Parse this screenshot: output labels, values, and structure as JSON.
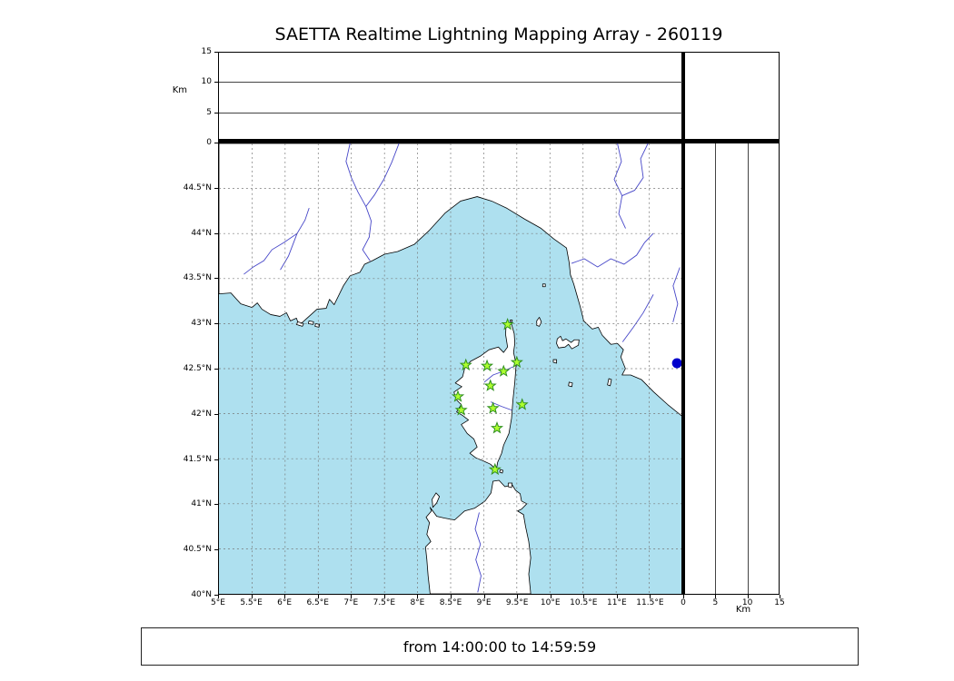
{
  "title": "SAETTA Realtime Lightning Mapping Array - 260119",
  "status_text": "from 14:00:00 to 14:59:59",
  "labels": {
    "km_left": "Km",
    "km_bottom": "Km"
  },
  "colors": {
    "sea": "#aee0ef",
    "land": "#ffffff",
    "coast": "#000000",
    "river": "#4646c8",
    "grid": "#777777",
    "panel_grid": "#444444",
    "star_fill": "#adff2f",
    "star_edge": "#2f8f1f",
    "source_dot": "#0000cc"
  },
  "axes": {
    "lon_range": [
      5,
      12
    ],
    "lat_range": [
      40,
      45
    ],
    "alt_range": [
      0,
      15
    ],
    "lon_tick_values": [
      5,
      5.5,
      6,
      6.5,
      7,
      7.5,
      8,
      8.5,
      9,
      9.5,
      10,
      10.5,
      11,
      11.5
    ],
    "lon_tick_labels": [
      "5°E",
      "5.5°E",
      "6°E",
      "6.5°E",
      "7°E",
      "7.5°E",
      "8°E",
      "8.5°E",
      "9°E",
      "9.5°E",
      "10°E",
      "10.5°E",
      "11°E",
      "11.5°E"
    ],
    "lat_tick_values": [
      44.5,
      44,
      43.5,
      43,
      42.5,
      42,
      41.5,
      41,
      40.5,
      40
    ],
    "lat_tick_labels": [
      "44.5°N",
      "44°N",
      "43.5°N",
      "43°N",
      "42.5°N",
      "42°N",
      "41.5°N",
      "41°N",
      "40.5°N",
      "40°N"
    ],
    "alt_tick_values": [
      0,
      5,
      10,
      15
    ],
    "alt_tick_labels": [
      "0",
      "5",
      "10",
      "15"
    ],
    "alt_grid_values": [
      5,
      10
    ]
  },
  "chart_data": {
    "type": "scatter",
    "title": "SAETTA Realtime Lightning Mapping Array - 260119",
    "time_window": "from 14:00:00 to 14:59:59",
    "map_extent": {
      "lon": [
        5,
        12
      ],
      "lat": [
        40,
        45
      ]
    },
    "altitude_axis_km": {
      "range": [
        0,
        15
      ],
      "ticks": [
        0,
        5,
        10,
        15
      ],
      "label": "Km"
    },
    "stations": [
      [
        9.36,
        42.99
      ],
      [
        8.73,
        42.54
      ],
      [
        9.05,
        42.53
      ],
      [
        9.3,
        42.47
      ],
      [
        9.5,
        42.57
      ],
      [
        9.1,
        42.31
      ],
      [
        8.61,
        42.19
      ],
      [
        9.58,
        42.1
      ],
      [
        8.66,
        42.04
      ],
      [
        9.14,
        42.06
      ],
      [
        9.2,
        41.84
      ],
      [
        9.17,
        41.38
      ]
    ],
    "source_point": {
      "lon": 11.92,
      "lat": 42.56
    },
    "notes": "altitude panels empty for this time window"
  },
  "geo": {
    "land_polygons": [
      {
        "name": "mainland-europe",
        "pts": [
          [
            5.0,
            43.33
          ],
          [
            5.18,
            43.34
          ],
          [
            5.33,
            43.22
          ],
          [
            5.5,
            43.18
          ],
          [
            5.58,
            43.23
          ],
          [
            5.65,
            43.16
          ],
          [
            5.78,
            43.1
          ],
          [
            5.92,
            43.08
          ],
          [
            6.02,
            43.12
          ],
          [
            6.08,
            43.03
          ],
          [
            6.17,
            43.06
          ],
          [
            6.21,
            42.98
          ],
          [
            6.33,
            43.06
          ],
          [
            6.48,
            43.16
          ],
          [
            6.62,
            43.17
          ],
          [
            6.67,
            43.27
          ],
          [
            6.74,
            43.21
          ],
          [
            6.88,
            43.42
          ],
          [
            6.98,
            43.53
          ],
          [
            7.13,
            43.57
          ],
          [
            7.2,
            43.66
          ],
          [
            7.32,
            43.7
          ],
          [
            7.5,
            43.77
          ],
          [
            7.7,
            43.8
          ],
          [
            7.95,
            43.88
          ],
          [
            8.17,
            44.03
          ],
          [
            8.42,
            44.23
          ],
          [
            8.65,
            44.36
          ],
          [
            8.9,
            44.41
          ],
          [
            9.12,
            44.36
          ],
          [
            9.35,
            44.28
          ],
          [
            9.62,
            44.16
          ],
          [
            9.86,
            44.06
          ],
          [
            10.06,
            43.94
          ],
          [
            10.25,
            43.84
          ],
          [
            10.29,
            43.68
          ],
          [
            10.31,
            43.54
          ],
          [
            10.36,
            43.44
          ],
          [
            10.46,
            43.18
          ],
          [
            10.51,
            43.03
          ],
          [
            10.64,
            42.94
          ],
          [
            10.73,
            42.96
          ],
          [
            10.79,
            42.87
          ],
          [
            10.92,
            42.77
          ],
          [
            11.02,
            42.78
          ],
          [
            11.11,
            42.71
          ],
          [
            11.07,
            42.63
          ],
          [
            11.14,
            42.5
          ],
          [
            11.09,
            42.43
          ],
          [
            11.22,
            42.43
          ],
          [
            11.38,
            42.38
          ],
          [
            11.57,
            42.24
          ],
          [
            11.78,
            42.1
          ],
          [
            12.0,
            41.97
          ],
          [
            12.0,
            45.0
          ],
          [
            5.0,
            45.0
          ]
        ]
      },
      {
        "name": "corsica",
        "pts": [
          [
            9.34,
            43.01
          ],
          [
            9.42,
            42.99
          ],
          [
            9.46,
            42.89
          ],
          [
            9.47,
            42.78
          ],
          [
            9.45,
            42.68
          ],
          [
            9.49,
            42.55
          ],
          [
            9.47,
            42.35
          ],
          [
            9.44,
            42.15
          ],
          [
            9.42,
            41.95
          ],
          [
            9.38,
            41.78
          ],
          [
            9.3,
            41.65
          ],
          [
            9.27,
            41.56
          ],
          [
            9.21,
            41.46
          ],
          [
            9.19,
            41.38
          ],
          [
            9.1,
            41.44
          ],
          [
            8.98,
            41.48
          ],
          [
            8.88,
            41.51
          ],
          [
            8.79,
            41.56
          ],
          [
            8.9,
            41.63
          ],
          [
            8.85,
            41.72
          ],
          [
            8.75,
            41.78
          ],
          [
            8.66,
            41.88
          ],
          [
            8.77,
            41.93
          ],
          [
            8.68,
            41.98
          ],
          [
            8.59,
            42.02
          ],
          [
            8.66,
            42.1
          ],
          [
            8.58,
            42.16
          ],
          [
            8.55,
            42.24
          ],
          [
            8.67,
            42.3
          ],
          [
            8.57,
            42.34
          ],
          [
            8.68,
            42.41
          ],
          [
            8.71,
            42.5
          ],
          [
            8.8,
            42.58
          ],
          [
            8.95,
            42.64
          ],
          [
            9.08,
            42.71
          ],
          [
            9.22,
            42.74
          ],
          [
            9.3,
            42.68
          ],
          [
            9.36,
            42.74
          ],
          [
            9.33,
            42.88
          ]
        ]
      },
      {
        "name": "sardinia",
        "pts": [
          [
            8.19,
            40.0
          ],
          [
            8.16,
            40.2
          ],
          [
            8.14,
            40.38
          ],
          [
            8.12,
            40.52
          ],
          [
            8.2,
            40.58
          ],
          [
            8.14,
            40.66
          ],
          [
            8.18,
            40.79
          ],
          [
            8.13,
            40.85
          ],
          [
            8.21,
            40.92
          ],
          [
            8.19,
            40.96
          ],
          [
            8.29,
            40.86
          ],
          [
            8.41,
            40.84
          ],
          [
            8.56,
            40.82
          ],
          [
            8.71,
            40.92
          ],
          [
            8.86,
            40.95
          ],
          [
            9.02,
            41.03
          ],
          [
            9.11,
            41.12
          ],
          [
            9.14,
            41.25
          ],
          [
            9.23,
            41.26
          ],
          [
            9.32,
            41.19
          ],
          [
            9.43,
            41.21
          ],
          [
            9.48,
            41.15
          ],
          [
            9.55,
            41.11
          ],
          [
            9.57,
            41.03
          ],
          [
            9.65,
            41.0
          ],
          [
            9.57,
            40.94
          ],
          [
            9.51,
            40.92
          ],
          [
            9.6,
            40.88
          ],
          [
            9.63,
            40.75
          ],
          [
            9.68,
            40.58
          ],
          [
            9.71,
            40.4
          ],
          [
            9.68,
            40.22
          ],
          [
            9.71,
            40.0
          ]
        ]
      },
      {
        "name": "asinara-island",
        "pts": [
          [
            8.23,
            40.96
          ],
          [
            8.29,
            41.01
          ],
          [
            8.33,
            41.08
          ],
          [
            8.28,
            41.12
          ],
          [
            8.22,
            41.05
          ]
        ]
      },
      {
        "name": "maddalena-island",
        "pts": [
          [
            9.37,
            41.19
          ],
          [
            9.42,
            41.18
          ],
          [
            9.43,
            41.23
          ],
          [
            9.37,
            41.23
          ]
        ]
      },
      {
        "name": "lavezzi-island",
        "pts": [
          [
            9.24,
            41.35
          ],
          [
            9.28,
            41.34
          ],
          [
            9.29,
            41.37
          ],
          [
            9.25,
            41.38
          ]
        ]
      },
      {
        "name": "elba-island",
        "pts": [
          [
            10.1,
            42.78
          ],
          [
            10.13,
            42.73
          ],
          [
            10.23,
            42.74
          ],
          [
            10.28,
            42.77
          ],
          [
            10.33,
            42.72
          ],
          [
            10.43,
            42.76
          ],
          [
            10.44,
            42.82
          ],
          [
            10.37,
            42.82
          ],
          [
            10.32,
            42.79
          ],
          [
            10.24,
            42.83
          ],
          [
            10.19,
            42.81
          ],
          [
            10.16,
            42.86
          ],
          [
            10.11,
            42.83
          ]
        ]
      },
      {
        "name": "capraia-island",
        "pts": [
          [
            9.8,
            42.98
          ],
          [
            9.84,
            42.97
          ],
          [
            9.87,
            43.02
          ],
          [
            9.84,
            43.07
          ],
          [
            9.8,
            43.03
          ]
        ]
      },
      {
        "name": "gorgona-island",
        "pts": [
          [
            9.89,
            43.41
          ],
          [
            9.93,
            43.41
          ],
          [
            9.93,
            43.44
          ],
          [
            9.89,
            43.44
          ]
        ]
      },
      {
        "name": "pianosa-island",
        "pts": [
          [
            10.05,
            42.57
          ],
          [
            10.1,
            42.56
          ],
          [
            10.1,
            42.6
          ],
          [
            10.05,
            42.6
          ]
        ]
      },
      {
        "name": "montecristo-island",
        "pts": [
          [
            10.28,
            42.31
          ],
          [
            10.33,
            42.3
          ],
          [
            10.34,
            42.34
          ],
          [
            10.29,
            42.35
          ]
        ]
      },
      {
        "name": "giglio-island",
        "pts": [
          [
            10.87,
            42.32
          ],
          [
            10.91,
            42.31
          ],
          [
            10.93,
            42.38
          ],
          [
            10.89,
            42.39
          ]
        ]
      },
      {
        "name": "giraglia-island",
        "pts": [
          [
            9.4,
            43.02
          ],
          [
            9.43,
            43.02
          ],
          [
            9.43,
            43.04
          ],
          [
            9.4,
            43.04
          ]
        ]
      },
      {
        "name": "porquerolles-island",
        "pts": [
          [
            6.17,
            42.99
          ],
          [
            6.26,
            42.97
          ],
          [
            6.28,
            43.0
          ],
          [
            6.19,
            43.02
          ]
        ]
      },
      {
        "name": "port-cros-island",
        "pts": [
          [
            6.35,
            43.0
          ],
          [
            6.42,
            42.99
          ],
          [
            6.43,
            43.02
          ],
          [
            6.36,
            43.03
          ]
        ]
      },
      {
        "name": "levant-island",
        "pts": [
          [
            6.45,
            42.97
          ],
          [
            6.51,
            42.96
          ],
          [
            6.52,
            42.99
          ],
          [
            6.46,
            43.0
          ]
        ]
      }
    ],
    "rivers": [
      [
        [
          5.38,
          43.55
        ],
        [
          5.52,
          43.63
        ],
        [
          5.68,
          43.7
        ],
        [
          5.8,
          43.82
        ],
        [
          5.98,
          43.9
        ],
        [
          6.18,
          44.0
        ],
        [
          6.3,
          44.15
        ],
        [
          6.36,
          44.28
        ]
      ],
      [
        [
          5.93,
          43.6
        ],
        [
          6.05,
          43.75
        ],
        [
          6.18,
          44.0
        ]
      ],
      [
        [
          6.98,
          45.0
        ],
        [
          6.92,
          44.8
        ],
        [
          7.0,
          44.62
        ],
        [
          7.1,
          44.46
        ],
        [
          7.22,
          44.3
        ],
        [
          7.3,
          44.14
        ],
        [
          7.27,
          43.96
        ]
      ],
      [
        [
          7.72,
          45.0
        ],
        [
          7.61,
          44.79
        ],
        [
          7.49,
          44.6
        ],
        [
          7.35,
          44.43
        ],
        [
          7.22,
          44.3
        ]
      ],
      [
        [
          7.27,
          43.96
        ],
        [
          7.17,
          43.82
        ],
        [
          7.28,
          43.7
        ]
      ],
      [
        [
          11.02,
          45.0
        ],
        [
          11.08,
          44.8
        ],
        [
          10.97,
          44.6
        ],
        [
          11.09,
          44.42
        ],
        [
          11.04,
          44.22
        ],
        [
          11.14,
          44.06
        ]
      ],
      [
        [
          11.48,
          45.0
        ],
        [
          11.37,
          44.83
        ],
        [
          11.41,
          44.62
        ],
        [
          11.28,
          44.48
        ],
        [
          11.09,
          44.42
        ]
      ],
      [
        [
          10.33,
          43.67
        ],
        [
          10.52,
          43.72
        ],
        [
          10.72,
          43.63
        ],
        [
          10.92,
          43.72
        ],
        [
          11.12,
          43.66
        ],
        [
          11.31,
          43.76
        ],
        [
          11.43,
          43.9
        ],
        [
          11.56,
          44.0
        ]
      ],
      [
        [
          11.56,
          43.32
        ],
        [
          11.41,
          43.12
        ],
        [
          11.26,
          42.96
        ],
        [
          11.1,
          42.8
        ]
      ],
      [
        [
          11.96,
          43.62
        ],
        [
          11.86,
          43.42
        ],
        [
          11.93,
          43.22
        ],
        [
          11.86,
          43.02
        ]
      ],
      [
        [
          9.01,
          42.35
        ],
        [
          9.14,
          42.43
        ],
        [
          9.29,
          42.47
        ],
        [
          9.44,
          42.52
        ]
      ],
      [
        [
          9.11,
          42.13
        ],
        [
          9.27,
          42.08
        ],
        [
          9.42,
          42.04
        ]
      ],
      [
        [
          8.93,
          40.9
        ],
        [
          8.87,
          40.72
        ],
        [
          8.95,
          40.55
        ],
        [
          8.88,
          40.38
        ],
        [
          8.96,
          40.2
        ],
        [
          8.91,
          40.02
        ]
      ]
    ]
  }
}
